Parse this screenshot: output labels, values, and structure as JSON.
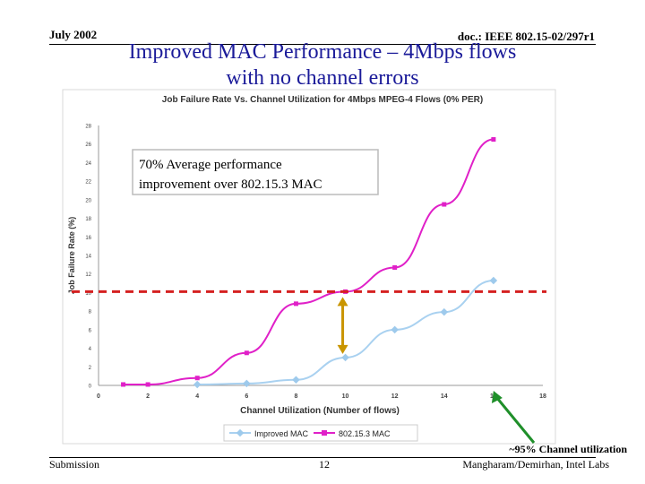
{
  "header": {
    "date": "July 2002",
    "doc_id": "doc.: IEEE 802.15-02/297r1"
  },
  "slide": {
    "title_line1": "Improved MAC Performance – 4Mbps flows",
    "title_line2": "with no channel errors"
  },
  "footer": {
    "submission": "Submission",
    "page_number": "12",
    "authors": "Mangharam/Demirhan, Intel Labs"
  },
  "annotations": {
    "callout_line1": "70% Average performance",
    "callout_line2": "improvement over 802.15.3 MAC",
    "utilization_note": "~95% Channel utilization"
  },
  "colors": {
    "improved": "#a9d1f0",
    "improved_marker": "#9ecaec",
    "baseline": "#e020c8",
    "threshold": "#d52020",
    "arrow": "#c99500",
    "green_arrow": "#1f8f2a",
    "title": "#1a1a99"
  },
  "chart_data": {
    "type": "line",
    "title": "Job Failure Rate Vs. Channel Utilization for 4Mbps MPEG-4 Flows (0% PER)",
    "xlabel": "Channel Utilization (Number of flows)",
    "ylabel": "Job Failure Rate (%)",
    "xlim": [
      0,
      18
    ],
    "ylim": [
      0,
      28
    ],
    "xticks": [
      0,
      2,
      4,
      6,
      8,
      10,
      12,
      14,
      16,
      18
    ],
    "yticks": [
      0,
      2,
      4,
      6,
      8,
      10,
      12,
      14,
      16,
      18,
      20,
      22,
      24,
      26,
      28
    ],
    "grid": false,
    "legend_position": "bottom-center",
    "series": [
      {
        "name": "Improved MAC",
        "x": [
          4,
          6,
          8,
          10,
          12,
          14,
          16
        ],
        "y": [
          0.1,
          0.2,
          0.6,
          3.0,
          6.0,
          7.9,
          11.3
        ]
      },
      {
        "name": "802.15.3 MAC",
        "x": [
          1,
          2,
          4,
          6,
          8,
          10,
          12,
          14,
          16
        ],
        "y": [
          0.1,
          0.1,
          0.8,
          3.5,
          8.8,
          10.1,
          12.7,
          19.5,
          26.5
        ]
      }
    ],
    "reference_line_y": 10.1
  }
}
